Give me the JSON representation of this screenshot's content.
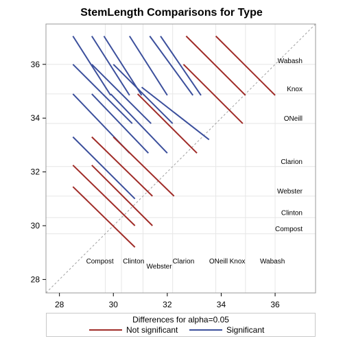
{
  "chart_data": {
    "type": "diffogram",
    "title": "StemLength Comparisons for Type",
    "xlim": [
      27.5,
      37.5
    ],
    "ylim": [
      27.5,
      37.5
    ],
    "x_ticks": [
      28,
      30,
      32,
      34,
      36
    ],
    "y_ticks": [
      28,
      30,
      32,
      34,
      36
    ],
    "grid": true,
    "groups": [
      {
        "name": "Compost",
        "mean": 29.7
      },
      {
        "name": "Clinton",
        "mean": 30.3
      },
      {
        "name": "Webster",
        "mean": 31.1
      },
      {
        "name": "Clarion",
        "mean": 32.2
      },
      {
        "name": "ONeill",
        "mean": 33.8
      },
      {
        "name": "Knox",
        "mean": 34.9
      },
      {
        "name": "Wabash",
        "mean": 36.0
      }
    ],
    "diagonal_labels": [
      {
        "name": "Compost",
        "x": 29.5,
        "y": 28.6
      },
      {
        "name": "Clinton",
        "x": 30.75,
        "y": 28.6
      },
      {
        "name": "Webster",
        "x": 31.7,
        "y": 28.4
      },
      {
        "name": "Clarion",
        "x": 32.6,
        "y": 28.6
      },
      {
        "name": "ONeill",
        "x": 33.9,
        "y": 28.6
      },
      {
        "name": "Knox",
        "x": 34.6,
        "y": 28.6
      },
      {
        "name": "Wabash",
        "x": 35.9,
        "y": 28.6
      }
    ],
    "side_labels": [
      {
        "name": "Wabash",
        "y": 36.05
      },
      {
        "name": "Knox",
        "y": 35.0
      },
      {
        "name": "ONeill",
        "y": 33.9
      },
      {
        "name": "Clarion",
        "y": 32.3
      },
      {
        "name": "Webster",
        "y": 31.2
      },
      {
        "name": "Clinton",
        "y": 30.4
      },
      {
        "name": "Compost",
        "y": 29.8
      }
    ],
    "segments": [
      {
        "x1": 31.75,
        "y1": 37.05,
        "x2": 33.25,
        "y2": 34.85,
        "significant": true
      },
      {
        "x1": 31.35,
        "y1": 37.05,
        "x2": 32.95,
        "y2": 34.85,
        "significant": true
      },
      {
        "x1": 30.6,
        "y1": 37.05,
        "x2": 32.0,
        "y2": 34.85,
        "significant": true
      },
      {
        "x1": 29.65,
        "y1": 37.05,
        "x2": 31.05,
        "y2": 34.85,
        "significant": true
      },
      {
        "x1": 29.2,
        "y1": 37.05,
        "x2": 30.6,
        "y2": 34.85,
        "significant": true
      },
      {
        "x1": 28.5,
        "y1": 37.05,
        "x2": 29.9,
        "y2": 34.85,
        "significant": true
      },
      {
        "x1": 32.7,
        "y1": 37.05,
        "x2": 34.9,
        "y2": 34.85,
        "significant": false
      },
      {
        "x1": 33.8,
        "y1": 37.05,
        "x2": 36.0,
        "y2": 34.85,
        "significant": false
      },
      {
        "x1": 30.0,
        "y1": 36.0,
        "x2": 32.2,
        "y2": 33.8,
        "significant": true
      },
      {
        "x1": 29.2,
        "y1": 36.0,
        "x2": 31.4,
        "y2": 33.8,
        "significant": true
      },
      {
        "x1": 28.5,
        "y1": 36.0,
        "x2": 30.7,
        "y2": 33.8,
        "significant": true
      },
      {
        "x1": 32.6,
        "y1": 36.0,
        "x2": 34.8,
        "y2": 33.8,
        "significant": false
      },
      {
        "x1": 31.05,
        "y1": 35.15,
        "x2": 33.55,
        "y2": 33.2,
        "significant": true
      },
      {
        "x1": 29.9,
        "y1": 34.9,
        "x2": 32.0,
        "y2": 32.7,
        "significant": true
      },
      {
        "x1": 29.2,
        "y1": 34.9,
        "x2": 31.3,
        "y2": 32.7,
        "significant": true
      },
      {
        "x1": 28.5,
        "y1": 34.9,
        "x2": 30.6,
        "y2": 32.7,
        "significant": true
      },
      {
        "x1": 30.9,
        "y1": 34.9,
        "x2": 33.1,
        "y2": 32.7,
        "significant": false
      },
      {
        "x1": 28.5,
        "y1": 33.3,
        "x2": 30.8,
        "y2": 31.0,
        "significant": true
      },
      {
        "x1": 29.2,
        "y1": 33.3,
        "x2": 31.45,
        "y2": 31.1,
        "significant": false
      },
      {
        "x1": 30.0,
        "y1": 33.3,
        "x2": 32.25,
        "y2": 31.1,
        "significant": false
      },
      {
        "x1": 28.5,
        "y1": 32.25,
        "x2": 30.8,
        "y2": 30.0,
        "significant": false
      },
      {
        "x1": 29.2,
        "y1": 32.25,
        "x2": 31.45,
        "y2": 30.0,
        "significant": false
      },
      {
        "x1": 28.5,
        "y1": 31.45,
        "x2": 30.8,
        "y2": 29.2,
        "significant": false
      }
    ],
    "colors": {
      "significant": "#3b4f9c",
      "not_significant": "#a02c28",
      "grid": "#e6e6e6",
      "diagonal": "#a0a0a0"
    },
    "legend": {
      "title": "Differences for alpha=0.05",
      "items": [
        {
          "label": "Not significant",
          "color": "#a02c28"
        },
        {
          "label": "Significant",
          "color": "#3b4f9c"
        }
      ]
    }
  }
}
